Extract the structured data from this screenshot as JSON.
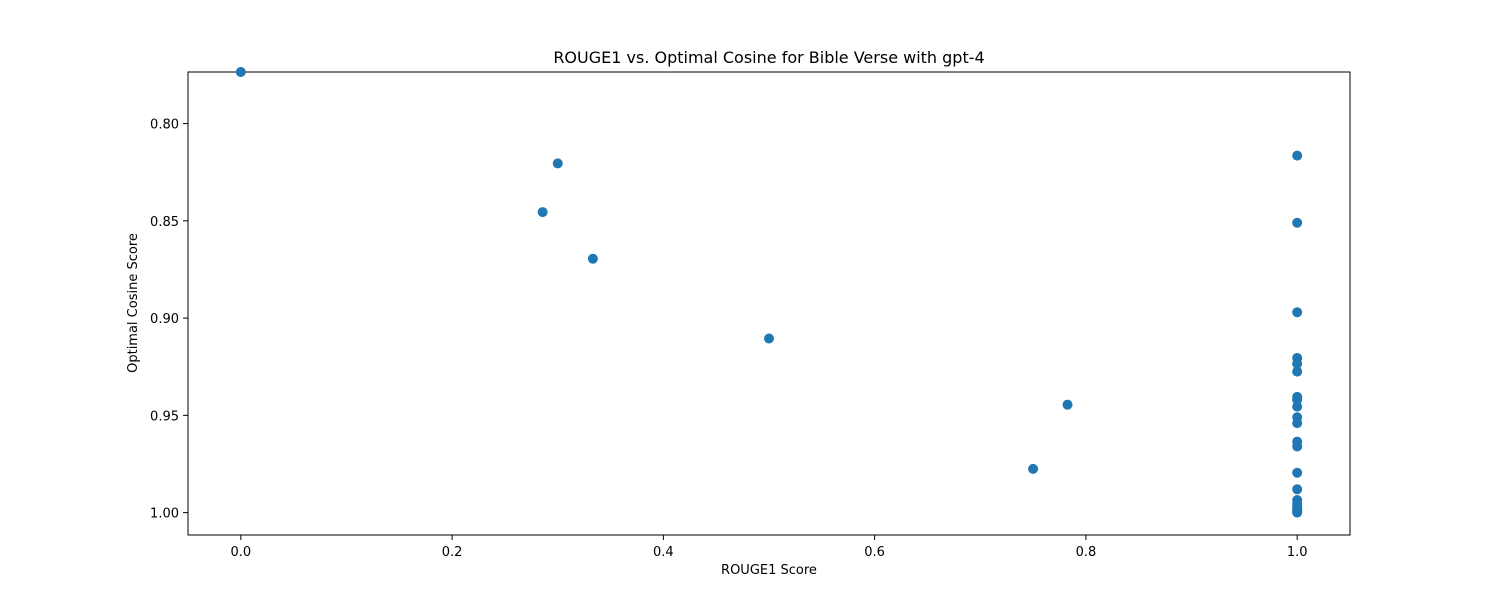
{
  "chart_data": {
    "type": "scatter",
    "title": "ROUGE1 vs. Optimal Cosine for Bible Verse with gpt-4",
    "xlabel": "ROUGE1 Score",
    "ylabel": "Optimal Cosine Score",
    "xlim": [
      -0.05,
      1.05
    ],
    "ylim": [
      1.0115,
      0.7735
    ],
    "y_inverted": true,
    "grid": false,
    "legend": "none",
    "marker_color": "#1f77b4",
    "x_ticks": [
      0.0,
      0.2,
      0.4,
      0.6,
      0.8,
      1.0
    ],
    "x_tick_labels": [
      "0.0",
      "0.2",
      "0.4",
      "0.6",
      "0.8",
      "1.0"
    ],
    "y_ticks": [
      0.8,
      0.85,
      0.9,
      0.95,
      1.0
    ],
    "y_tick_labels": [
      "0.80",
      "0.85",
      "0.90",
      "0.95",
      "1.00"
    ],
    "points": [
      {
        "x": 0.0,
        "y": 0.7735
      },
      {
        "x": 0.3,
        "y": 0.8205
      },
      {
        "x": 0.2857,
        "y": 0.8455
      },
      {
        "x": 0.3333,
        "y": 0.8695
      },
      {
        "x": 0.5,
        "y": 0.9105
      },
      {
        "x": 0.75,
        "y": 0.9775
      },
      {
        "x": 0.7826,
        "y": 0.9445
      },
      {
        "x": 1.0,
        "y": 0.8165
      },
      {
        "x": 1.0,
        "y": 0.851
      },
      {
        "x": 1.0,
        "y": 0.897
      },
      {
        "x": 1.0,
        "y": 0.9205
      },
      {
        "x": 1.0,
        "y": 0.9235
      },
      {
        "x": 1.0,
        "y": 0.9275
      },
      {
        "x": 1.0,
        "y": 0.9405
      },
      {
        "x": 1.0,
        "y": 0.942
      },
      {
        "x": 1.0,
        "y": 0.9455
      },
      {
        "x": 1.0,
        "y": 0.951
      },
      {
        "x": 1.0,
        "y": 0.954
      },
      {
        "x": 1.0,
        "y": 0.9635
      },
      {
        "x": 1.0,
        "y": 0.966
      },
      {
        "x": 1.0,
        "y": 0.9795
      },
      {
        "x": 1.0,
        "y": 0.988
      },
      {
        "x": 1.0,
        "y": 0.9935
      },
      {
        "x": 1.0,
        "y": 0.9955
      },
      {
        "x": 1.0,
        "y": 0.997
      },
      {
        "x": 1.0,
        "y": 0.9985
      },
      {
        "x": 1.0,
        "y": 0.999
      },
      {
        "x": 1.0,
        "y": 0.9995
      },
      {
        "x": 1.0,
        "y": 1.0
      }
    ]
  }
}
